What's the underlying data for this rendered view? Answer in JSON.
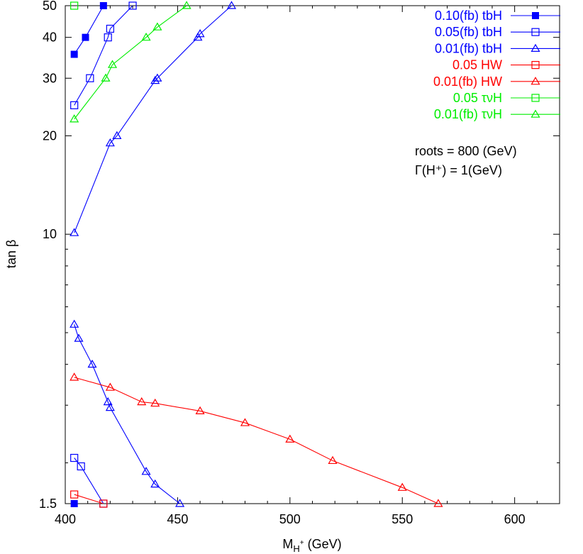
{
  "chart_data": {
    "type": "line",
    "xlabel": "M",
    "xlabel_sub": "H",
    "xlabel_sup": "+",
    "xlabel_unit": " (GeV)",
    "ylabel": "tan β",
    "xlim": [
      400,
      620
    ],
    "ylim": [
      1.5,
      50
    ],
    "ylog": true,
    "grid": false,
    "legend_position": "top-right",
    "x_ticks": [
      400,
      450,
      500,
      550,
      600
    ],
    "y_ticks": [
      1.5,
      10,
      20,
      30,
      40,
      50
    ],
    "x_tick_labels": [
      "400",
      "450",
      "500",
      "550",
      "600"
    ],
    "y_tick_labels": [
      "1.5",
      "10",
      "20",
      "30",
      "40",
      "50"
    ],
    "notes": [
      "roots = 800 (GeV)",
      "Γ(H⁺) = 1(GeV)"
    ],
    "series": [
      {
        "name": "0.10(fb) tbH",
        "color": "#0000ff",
        "marker": "filled-square",
        "segments": [
          [
            [
              404,
              35.5
            ],
            [
              409,
              40
            ],
            [
              417,
              50
            ]
          ],
          [
            [
              404,
              1.5
            ]
          ]
        ]
      },
      {
        "name": "0.05(fb) tbH",
        "color": "#0000ff",
        "marker": "open-square",
        "segments": [
          [
            [
              404,
              24.8
            ],
            [
              411,
              30
            ],
            [
              419,
              40
            ],
            [
              420,
              42.5
            ],
            [
              430,
              50
            ]
          ],
          [
            [
              404,
              2.07
            ],
            [
              407,
              1.95
            ],
            [
              417,
              1.5
            ]
          ]
        ]
      },
      {
        "name": "0.01(fb) tbH",
        "color": "#0000ff",
        "marker": "open-triangle",
        "segments": [
          [
            [
              404,
              10.1
            ],
            [
              420,
              19
            ],
            [
              423,
              20
            ],
            [
              440,
              29.5
            ],
            [
              441,
              30
            ],
            [
              459,
              40
            ],
            [
              460,
              41
            ],
            [
              474,
              50
            ]
          ],
          [
            [
              404,
              5.3
            ],
            [
              406,
              4.8
            ],
            [
              412,
              4.0
            ],
            [
              419,
              3.07
            ],
            [
              420,
              2.95
            ],
            [
              436,
              1.88
            ],
            [
              440,
              1.72
            ],
            [
              451,
              1.5
            ]
          ]
        ]
      },
      {
        "name": "0.05 HW",
        "color": "#ff0000",
        "marker": "open-square",
        "segments": [
          [
            [
              404,
              1.6
            ],
            [
              417,
              1.5
            ]
          ]
        ]
      },
      {
        "name": "0.01(fb) HW",
        "color": "#ff0000",
        "marker": "open-triangle",
        "segments": [
          [
            [
              404,
              3.65
            ],
            [
              420,
              3.4
            ],
            [
              434,
              3.07
            ],
            [
              440,
              3.04
            ],
            [
              460,
              2.88
            ],
            [
              480,
              2.65
            ],
            [
              500,
              2.36
            ],
            [
              519,
              2.03
            ],
            [
              550,
              1.68
            ],
            [
              566,
              1.5
            ]
          ]
        ]
      },
      {
        "name": "0.05 τνH",
        "color": "#00ee00",
        "marker": "open-square",
        "segments": [
          [
            [
              404,
              50
            ]
          ]
        ]
      },
      {
        "name": "0.01(fb) τνH",
        "color": "#00ee00",
        "marker": "open-triangle",
        "segments": [
          [
            [
              404,
              22.5
            ],
            [
              418,
              30
            ],
            [
              421,
              33
            ],
            [
              436,
              40
            ],
            [
              441,
              43
            ],
            [
              454,
              50
            ]
          ]
        ]
      }
    ]
  }
}
